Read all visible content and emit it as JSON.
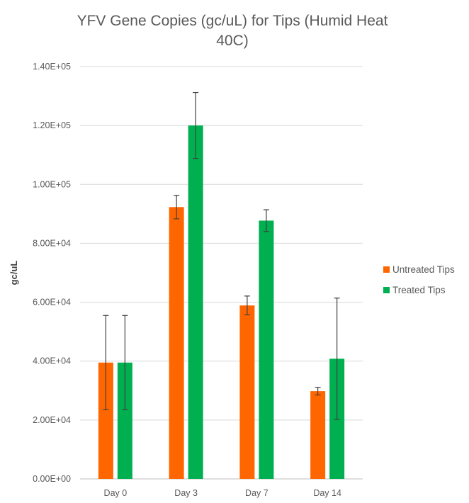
{
  "chart_data": {
    "type": "bar",
    "title_lines": [
      "YFV Gene Copies (gc/uL) for Tips (Humid Heat",
      "40C)"
    ],
    "xlabel": "",
    "ylabel": "gc/uL",
    "categories": [
      "Day 0",
      "Day 3",
      "Day 7",
      "Day 14"
    ],
    "ylim": [
      0,
      140000
    ],
    "y_ticks": [
      0,
      20000,
      40000,
      60000,
      80000,
      100000,
      120000,
      140000
    ],
    "y_tick_labels": [
      "0.00E+00",
      "2.00E+04",
      "4.00E+04",
      "6.00E+04",
      "8.00E+04",
      "1.00E+05",
      "1.20E+05",
      "1.40E+05"
    ],
    "grid": true,
    "legend_position": "right",
    "series": [
      {
        "name": "Untreated Tips",
        "color": "#ff6600",
        "values": [
          39500,
          92300,
          58900,
          29800
        ],
        "error": [
          16000,
          4000,
          3200,
          1300
        ]
      },
      {
        "name": "Treated Tips",
        "color": "#00b050",
        "values": [
          39500,
          120000,
          87700,
          40800
        ],
        "error": [
          16000,
          11200,
          3700,
          20600
        ]
      }
    ]
  }
}
